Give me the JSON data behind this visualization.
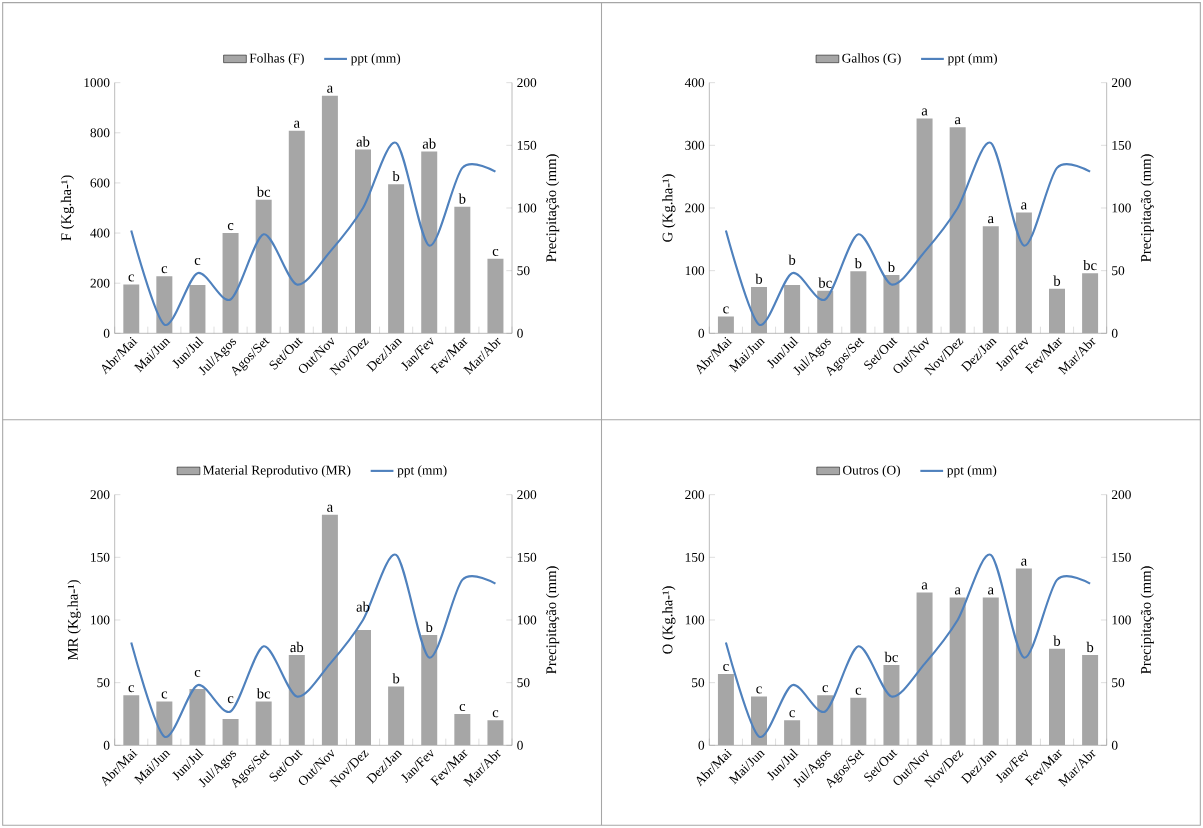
{
  "chart_data": [
    {
      "type": "bar",
      "categories": [
        "Abr/Mai",
        "Mai/Jun",
        "Jun/Jul",
        "Jul/Agos",
        "Agos/Set",
        "Set/Out",
        "Out/Nov",
        "Nov/Dez",
        "Dez/Jan",
        "Jan/Fev",
        "Fev/Mar",
        "Mar/Abr"
      ],
      "ylabel": "F (Kg.ha-¹)",
      "y2label": "Precipitação (mm)",
      "ylim": [
        0,
        1000
      ],
      "yticks": [
        0,
        200,
        400,
        600,
        800,
        1000
      ],
      "y2lim": [
        0,
        200
      ],
      "y2ticks": [
        0,
        50,
        100,
        150,
        200
      ],
      "legend": "top",
      "series": [
        {
          "name": "Folhas (F)",
          "color": "#a6a6a6",
          "values": [
            195,
            228,
            193,
            400,
            533,
            808,
            948,
            733,
            595,
            725,
            505,
            297
          ]
        },
        {
          "name": "ppt (mm)",
          "type": "line",
          "axis": "y2",
          "color": "#4f81bd",
          "values": [
            82,
            7,
            48,
            27,
            79,
            39,
            65,
            100,
            152,
            70,
            132,
            129
          ]
        }
      ],
      "annotations": [
        {
          "text": "c",
          "x": "Abr/Mai",
          "y": 195
        },
        {
          "text": "c",
          "x": "Mai/Jun",
          "y": 228
        },
        {
          "text": "c",
          "x": "Jun/Jul",
          "y": 193
        },
        {
          "text": "c",
          "x": "Jul/Agos",
          "y": 400
        },
        {
          "text": "bc",
          "x": "Agos/Set",
          "y": 533
        },
        {
          "text": "a",
          "x": "Set/Out",
          "y": 808
        },
        {
          "text": "a",
          "x": "Out/Nov",
          "y": 948
        },
        {
          "text": "ab",
          "x": "Nov/Dez",
          "y": 733
        },
        {
          "text": "b",
          "x": "Dez/Jan",
          "y": 595
        },
        {
          "text": "ab",
          "x": "Jan/Fev",
          "y": 725
        },
        {
          "text": "b",
          "x": "Fev/Mar",
          "y": 505
        },
        {
          "text": "c",
          "x": "Mar/Abr",
          "y": 297
        }
      ]
    },
    {
      "type": "bar",
      "categories": [
        "Abr/Mai",
        "Mai/Jun",
        "Jun/Jul",
        "Jul/Agos",
        "Agos/Set",
        "Set/Out",
        "Out/Nov",
        "Nov/Dez",
        "Dez/Jan",
        "Jan/Fev",
        "Fev/Mar",
        "Mar/Abr"
      ],
      "ylabel": "G (Kg.ha-¹)",
      "y2label": "Precipitação (mm)",
      "ylim": [
        0,
        400
      ],
      "yticks": [
        0,
        100,
        200,
        300,
        400
      ],
      "y2lim": [
        0,
        200
      ],
      "y2ticks": [
        0,
        50,
        100,
        150,
        200
      ],
      "legend": "top",
      "series": [
        {
          "name": "Galhos (G)",
          "color": "#a6a6a6",
          "values": [
            27,
            74,
            77,
            68,
            99,
            93,
            343,
            329,
            171,
            193,
            71,
            96
          ]
        },
        {
          "name": "ppt (mm)",
          "type": "line",
          "axis": "y2",
          "color": "#4f81bd",
          "values": [
            82,
            7,
            48,
            27,
            79,
            39,
            65,
            100,
            152,
            70,
            132,
            129
          ]
        }
      ],
      "annotations": [
        {
          "text": "c",
          "x": "Abr/Mai",
          "y": 27
        },
        {
          "text": "b",
          "x": "Mai/Jun",
          "y": 74
        },
        {
          "text": "b",
          "x": "Jun/Jul",
          "y": 77
        },
        {
          "text": "bc",
          "x": "Jul/Agos",
          "y": 68
        },
        {
          "text": "b",
          "x": "Agos/Set",
          "y": 99
        },
        {
          "text": "b",
          "x": "Set/Out",
          "y": 93
        },
        {
          "text": "a",
          "x": "Out/Nov",
          "y": 343
        },
        {
          "text": "a",
          "x": "Nov/Dez",
          "y": 329
        },
        {
          "text": "a",
          "x": "Dez/Jan",
          "y": 171
        },
        {
          "text": "a",
          "x": "Jan/Fev",
          "y": 193
        },
        {
          "text": "b",
          "x": "Fev/Mar",
          "y": 71
        },
        {
          "text": "bc",
          "x": "Mar/Abr",
          "y": 96
        }
      ]
    },
    {
      "type": "bar",
      "categories": [
        "Abr/Mai",
        "Mai/Jun",
        "Jun/Jul",
        "Jul/Agos",
        "Agos/Set",
        "Set/Out",
        "Out/Nov",
        "Nov/Dez",
        "Dez/Jan",
        "Jan/Fev",
        "Fev/Mar",
        "Mar/Abr"
      ],
      "ylabel": "MR (Kg.ha-¹)",
      "y2label": "Precipitação (mm)",
      "ylim": [
        0,
        200
      ],
      "yticks": [
        0,
        50,
        100,
        150,
        200
      ],
      "y2lim": [
        0,
        200
      ],
      "y2ticks": [
        0,
        50,
        100,
        150,
        200
      ],
      "legend": "top",
      "series": [
        {
          "name": "Material Reprodutivo (MR)",
          "color": "#a6a6a6",
          "values": [
            40,
            35,
            45,
            21,
            35,
            72,
            184,
            92,
            47,
            88,
            25,
            20
          ]
        },
        {
          "name": "ppt (mm)",
          "type": "line",
          "axis": "y2",
          "color": "#4f81bd",
          "values": [
            82,
            7,
            48,
            27,
            79,
            39,
            65,
            100,
            152,
            70,
            132,
            129
          ]
        }
      ],
      "annotations": [
        {
          "text": "c",
          "x": "Abr/Mai",
          "y": 40
        },
        {
          "text": "c",
          "x": "Mai/Jun",
          "y": 35
        },
        {
          "text": "c",
          "x": "Jun/Jul",
          "y": 45
        },
        {
          "text": "c",
          "x": "Jul/Agos",
          "y": 21
        },
        {
          "text": "bc",
          "x": "Agos/Set",
          "y": 35
        },
        {
          "text": "ab",
          "x": "Set/Out",
          "y": 72
        },
        {
          "text": "a",
          "x": "Out/Nov",
          "y": 184
        },
        {
          "text": "ab",
          "x": "Nov/Dez",
          "y": 92
        },
        {
          "text": "b",
          "x": "Dez/Jan",
          "y": 47
        },
        {
          "text": "b",
          "x": "Jan/Fev",
          "y": 88
        },
        {
          "text": "c",
          "x": "Fev/Mar",
          "y": 25
        },
        {
          "text": "c",
          "x": "Mar/Abr",
          "y": 20
        }
      ]
    },
    {
      "type": "bar",
      "categories": [
        "Abr/Mai",
        "Mai/Jun",
        "Jun/Jul",
        "Jul/Agos",
        "Agos/Set",
        "Set/Out",
        "Out/Nov",
        "Nov/Dez",
        "Dez/Jan",
        "Jan/Fev",
        "Fev/Mar",
        "Mar/Abr"
      ],
      "ylabel": "O (Kg.ha-¹)",
      "y2label": "Precipitação (mm)",
      "ylim": [
        0,
        200
      ],
      "yticks": [
        0,
        50,
        100,
        150,
        200
      ],
      "y2lim": [
        0,
        200
      ],
      "y2ticks": [
        0,
        50,
        100,
        150,
        200
      ],
      "legend": "top",
      "series": [
        {
          "name": "Outros (O)",
          "color": "#a6a6a6",
          "values": [
            57,
            39,
            20,
            40,
            38,
            64,
            122,
            118,
            118,
            141,
            77,
            72
          ]
        },
        {
          "name": "ppt (mm)",
          "type": "line",
          "axis": "y2",
          "color": "#4f81bd",
          "values": [
            82,
            7,
            48,
            27,
            79,
            39,
            65,
            100,
            152,
            70,
            132,
            129
          ]
        }
      ],
      "annotations": [
        {
          "text": "c",
          "x": "Abr/Mai",
          "y": 57
        },
        {
          "text": "c",
          "x": "Mai/Jun",
          "y": 39
        },
        {
          "text": "c",
          "x": "Jun/Jul",
          "y": 20
        },
        {
          "text": "c",
          "x": "Jul/Agos",
          "y": 40
        },
        {
          "text": "c",
          "x": "Agos/Set",
          "y": 38
        },
        {
          "text": "bc",
          "x": "Set/Out",
          "y": 64
        },
        {
          "text": "a",
          "x": "Out/Nov",
          "y": 122
        },
        {
          "text": "a",
          "x": "Nov/Dez",
          "y": 118
        },
        {
          "text": "a",
          "x": "Dez/Jan",
          "y": 118
        },
        {
          "text": "a",
          "x": "Jan/Fev",
          "y": 141
        },
        {
          "text": "b",
          "x": "Fev/Mar",
          "y": 77
        },
        {
          "text": "b",
          "x": "Mar/Abr",
          "y": 72
        }
      ]
    }
  ]
}
